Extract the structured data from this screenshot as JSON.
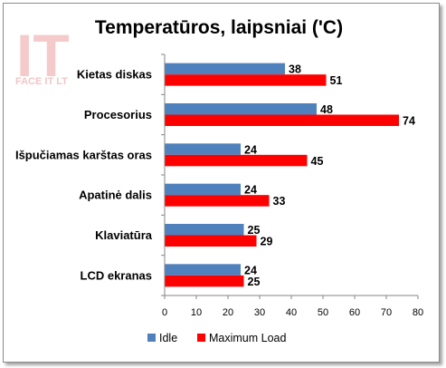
{
  "watermark": {
    "text": "IT",
    "caption": "FACE IT LT"
  },
  "chart_data": {
    "type": "bar",
    "orientation": "horizontal",
    "title": "Temperatūros, laipsniai ('C)",
    "categories": [
      "Kietas diskas",
      "Procesorius",
      "Išpučiamas karštas oras",
      "Apatinė dalis",
      "Klaviatūra",
      "LCD ekranas"
    ],
    "series": [
      {
        "name": "Idle",
        "color": "#4f81bd",
        "values": [
          38,
          48,
          24,
          24,
          25,
          24
        ]
      },
      {
        "name": "Maximum Load",
        "color": "#ff0000",
        "values": [
          51,
          74,
          45,
          33,
          29,
          25
        ]
      }
    ],
    "xlim": [
      0,
      80
    ],
    "xticks": [
      0,
      10,
      20,
      30,
      40,
      50,
      60,
      70,
      80
    ],
    "data_labels": true,
    "grid": false,
    "legend_position": "bottom"
  }
}
